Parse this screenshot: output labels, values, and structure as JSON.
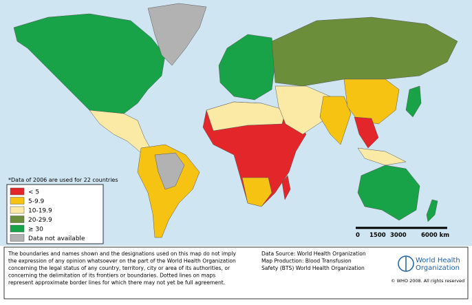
{
  "note": "*Data of 2006 are used for 22 countries",
  "legend": [
    {
      "label": "< 5",
      "color": "#e3262a"
    },
    {
      "label": "5-9.9",
      "color": "#f6c313"
    },
    {
      "label": "10-19.9",
      "color": "#fbeaa5"
    },
    {
      "label": "20-29.9",
      "color": "#6b8e3a"
    },
    {
      "label": "≥ 30",
      "color": "#18a349"
    },
    {
      "label": "Data not available",
      "color": "#b2b2b2"
    }
  ],
  "scale": [
    "0",
    "1500",
    "3000",
    "6000 km"
  ],
  "disclaimer": [
    "The boundaries and names shown and the designations used on this map do not imply",
    "the expression of any opinion whatsoever on the part of the World Health Organization",
    "concerning the legal status of any country, territory, city or area of its authorities, or",
    "concerning the delimitation of its frontiers or boundaries. Dotted lines on maps",
    "represent approximate border lines for which there may not yet be full agreement."
  ],
  "credits": [
    "Data Source: World Health Organization",
    "Map Production: Blood Transfusion",
    "Safety (BTS) World Health Organization"
  ],
  "logo": [
    "World Health",
    "Organization"
  ],
  "copyright": "© WHO 2008. All rights reserved"
}
